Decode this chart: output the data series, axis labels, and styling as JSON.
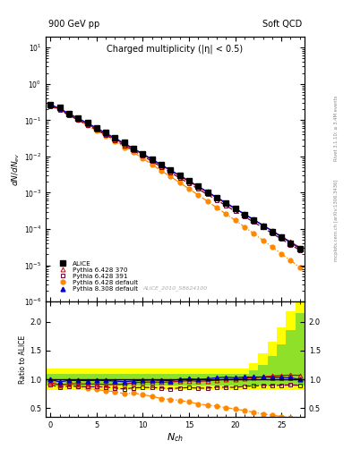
{
  "title_top_left": "900 GeV pp",
  "title_top_right": "Soft QCD",
  "main_title": "Charged multiplicity (|η| < 0.5)",
  "ylabel_main": "dN/dN_{ev}",
  "ylabel_ratio": "Ratio to ALICE",
  "xlabel": "N_{ch}",
  "right_label_top": "Rivet 3.1.10; ≥ 3.4M events",
  "right_label_bottom": "mcplots.cern.ch [arXiv:1306.3436]",
  "watermark": "ALICE_2010_S8624100",
  "nch": [
    0,
    1,
    2,
    3,
    4,
    5,
    6,
    7,
    8,
    9,
    10,
    11,
    12,
    13,
    14,
    15,
    16,
    17,
    18,
    19,
    20,
    21,
    22,
    23,
    24,
    25,
    26,
    27
  ],
  "alice_y": [
    0.27,
    0.22,
    0.155,
    0.115,
    0.085,
    0.062,
    0.045,
    0.033,
    0.024,
    0.017,
    0.012,
    0.0085,
    0.006,
    0.0043,
    0.003,
    0.0021,
    0.0015,
    0.00105,
    0.00073,
    0.00051,
    0.00036,
    0.00025,
    0.000175,
    0.000122,
    8.5e-05,
    5.9e-05,
    4.1e-05,
    2.9e-05
  ],
  "alice_color": "#000000",
  "p6_370_y": [
    0.255,
    0.198,
    0.143,
    0.106,
    0.078,
    0.057,
    0.041,
    0.03,
    0.022,
    0.016,
    0.0114,
    0.0081,
    0.0057,
    0.0041,
    0.0029,
    0.00205,
    0.00145,
    0.00102,
    0.00072,
    0.00051,
    0.00036,
    0.000255,
    0.00018,
    0.000127,
    9e-05,
    6.3e-05,
    4.4e-05,
    3.1e-05
  ],
  "p6_370_color": "#cc0000",
  "p6_370_label": "Pythia 6.428 370",
  "p6_391_y": [
    0.245,
    0.19,
    0.137,
    0.101,
    0.074,
    0.054,
    0.039,
    0.028,
    0.02,
    0.0145,
    0.0103,
    0.0073,
    0.0051,
    0.0036,
    0.00255,
    0.0018,
    0.00127,
    0.00089,
    0.00063,
    0.00044,
    0.00031,
    0.00022,
    0.000155,
    0.000109,
    7.6e-05,
    5.3e-05,
    3.7e-05,
    2.6e-05
  ],
  "p6_391_color": "#660033",
  "p6_391_label": "Pythia 6.428 391",
  "p6_def_y": [
    0.265,
    0.2,
    0.14,
    0.1,
    0.072,
    0.051,
    0.036,
    0.026,
    0.018,
    0.013,
    0.0088,
    0.006,
    0.004,
    0.0028,
    0.0019,
    0.00128,
    0.00086,
    0.00058,
    0.00039,
    0.00026,
    0.000174,
    0.000115,
    7.5e-05,
    4.9e-05,
    3.2e-05,
    2.1e-05,
    1.35e-05,
    8.8e-06
  ],
  "p6_def_color": "#ff8800",
  "p6_def_label": "Pythia 6.428 default",
  "p8_def_y": [
    0.27,
    0.21,
    0.152,
    0.113,
    0.083,
    0.061,
    0.044,
    0.032,
    0.023,
    0.0165,
    0.0118,
    0.0084,
    0.0059,
    0.0042,
    0.003,
    0.00212,
    0.0015,
    0.00106,
    0.00075,
    0.00053,
    0.00037,
    0.00026,
    0.000182,
    0.000127,
    8.8e-05,
    6.1e-05,
    4.2e-05,
    2.9e-05
  ],
  "p8_def_color": "#0000cc",
  "p8_def_label": "Pythia 8.308 default",
  "ylim_main": [
    1e-06,
    20
  ],
  "xlim": [
    -0.5,
    27.5
  ],
  "ylim_ratio": [
    0.35,
    2.35
  ],
  "ratio_yticks": [
    0.5,
    1.0,
    1.5,
    2.0
  ],
  "band_green_lo": [
    0.9,
    0.9,
    0.9,
    0.9,
    0.9,
    0.9,
    0.9,
    0.9,
    0.9,
    0.9,
    0.9,
    0.9,
    0.9,
    0.9,
    0.9,
    0.9,
    0.9,
    0.9,
    0.9,
    0.9,
    0.9,
    0.9,
    0.9,
    0.9,
    0.9,
    0.9,
    0.9,
    0.9
  ],
  "band_green_hi": [
    1.1,
    1.1,
    1.1,
    1.1,
    1.1,
    1.1,
    1.1,
    1.1,
    1.1,
    1.1,
    1.1,
    1.1,
    1.1,
    1.1,
    1.1,
    1.1,
    1.1,
    1.1,
    1.1,
    1.1,
    1.1,
    1.1,
    1.15,
    1.25,
    1.4,
    1.6,
    1.85,
    2.15
  ],
  "band_yellow_lo": [
    0.82,
    0.82,
    0.82,
    0.82,
    0.82,
    0.82,
    0.82,
    0.82,
    0.82,
    0.82,
    0.82,
    0.82,
    0.82,
    0.82,
    0.82,
    0.82,
    0.82,
    0.82,
    0.82,
    0.82,
    0.82,
    0.82,
    0.82,
    0.82,
    0.82,
    0.82,
    0.82,
    0.82
  ],
  "band_yellow_hi": [
    1.18,
    1.18,
    1.18,
    1.18,
    1.18,
    1.18,
    1.18,
    1.18,
    1.18,
    1.18,
    1.18,
    1.18,
    1.18,
    1.18,
    1.18,
    1.18,
    1.18,
    1.18,
    1.18,
    1.18,
    1.18,
    1.18,
    1.28,
    1.45,
    1.65,
    1.9,
    2.18,
    2.35
  ]
}
